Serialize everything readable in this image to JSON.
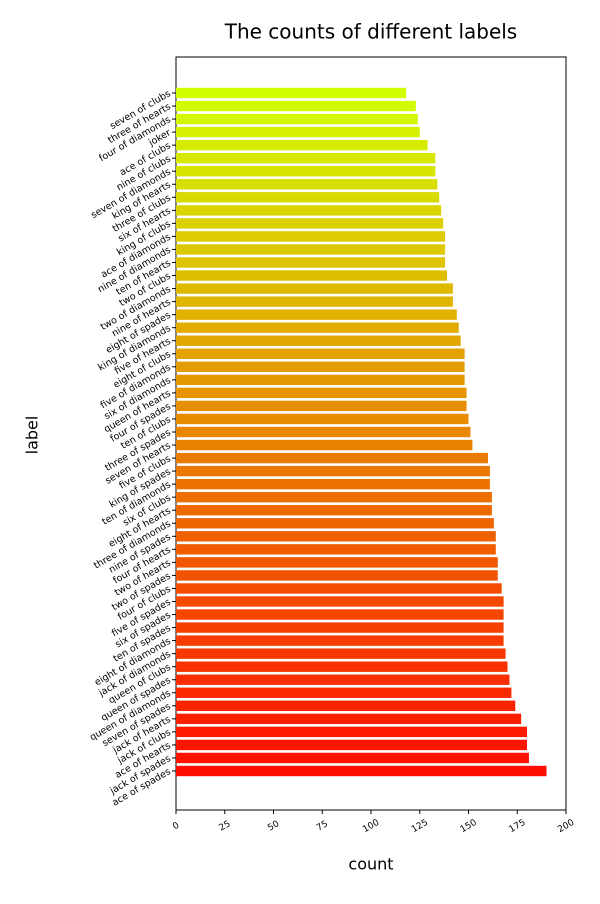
{
  "chart_data": {
    "type": "barh",
    "title": "The counts of different labels",
    "xlabel": "count",
    "ylabel": "label",
    "categories": [
      "ace of spades",
      "jack of spades",
      "ace of hearts",
      "jack of clubs",
      "jack of hearts",
      "seven of spades",
      "queen of diamonds",
      "queen of spades",
      "queen of clubs",
      "jack of diamonds",
      "eight of diamonds",
      "ten of spades",
      "six of spades",
      "five of spades",
      "four of clubs",
      "two of spades",
      "two of hearts",
      "four of hearts",
      "nine of spades",
      "three of diamonds",
      "eight of hearts",
      "six of clubs",
      "ten of diamonds",
      "king of spades",
      "five of clubs",
      "seven of hearts",
      "three of spades",
      "ten of clubs",
      "four of spades",
      "queen of hearts",
      "six of diamonds",
      "five of diamonds",
      "eight of clubs",
      "five of hearts",
      "king of diamonds",
      "eight of spades",
      "nine of hearts",
      "two of diamonds",
      "two of clubs",
      "ten of hearts",
      "nine of diamonds",
      "ace of diamonds",
      "king of clubs",
      "six of hearts",
      "three of clubs",
      "king of hearts",
      "seven of diamonds",
      "nine of clubs",
      "ace of clubs",
      "joker",
      "four of diamonds",
      "three of hearts",
      "seven of clubs"
    ],
    "values": [
      190,
      181,
      180,
      180,
      177,
      174,
      172,
      171,
      170,
      169,
      168,
      168,
      168,
      168,
      167,
      165,
      165,
      164,
      164,
      163,
      162,
      162,
      161,
      161,
      160,
      152,
      151,
      150,
      149,
      149,
      148,
      148,
      148,
      146,
      145,
      144,
      142,
      142,
      139,
      138,
      138,
      138,
      137,
      136,
      135,
      134,
      133,
      133,
      129,
      125,
      124,
      123,
      118
    ],
    "color_range": [
      "#ff0d00",
      "#d2ff00"
    ],
    "xlim": [
      0,
      200
    ],
    "xticks": [
      0,
      25,
      50,
      75,
      100,
      125,
      150,
      175,
      200
    ]
  }
}
